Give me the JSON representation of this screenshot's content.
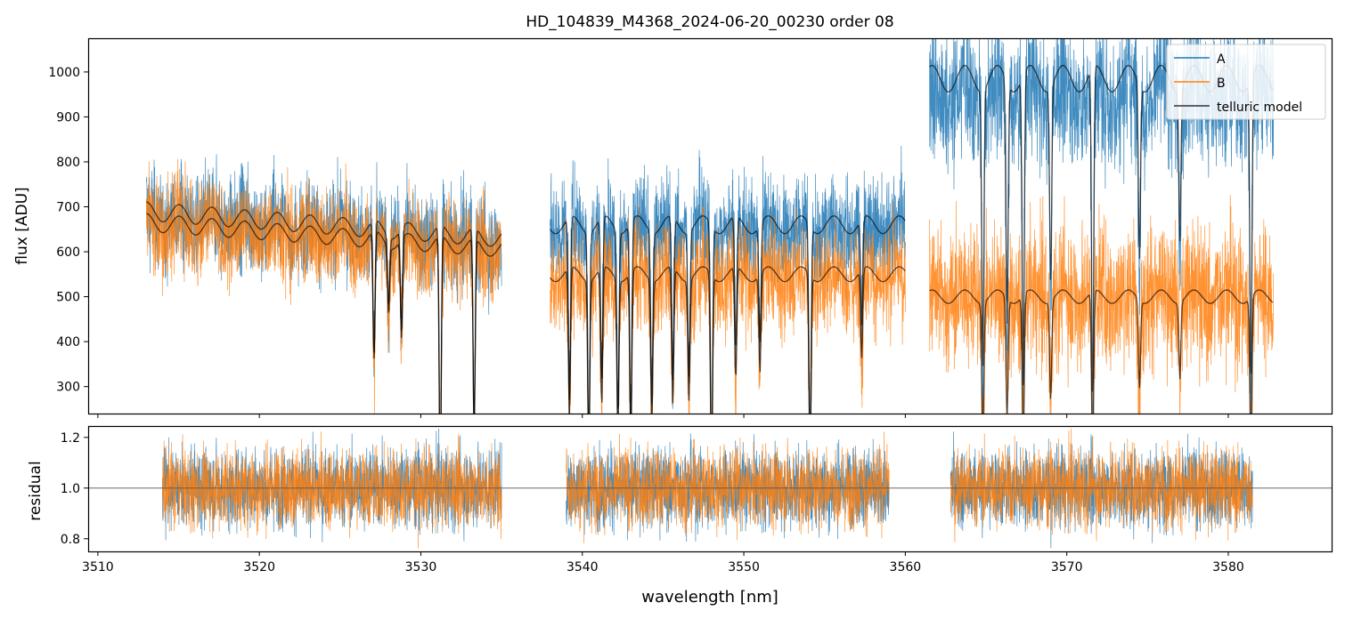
{
  "chart_data": [
    {
      "type": "line",
      "title": "HD_104839_M4368_2024-06-20_00230  order 08",
      "ylabel": "flux [ADU]",
      "xlim": [
        3509.4,
        3586.4
      ],
      "ylim": [
        240,
        1075
      ],
      "yticks": [
        300,
        400,
        500,
        600,
        700,
        800,
        900,
        1000
      ],
      "ytick_labels": [
        "300",
        "400",
        "500",
        "600",
        "700",
        "800",
        "900",
        "1000"
      ],
      "legend": {
        "position": "top-right",
        "entries": [
          {
            "label": "A",
            "color": "#1f77b4"
          },
          {
            "label": "B",
            "color": "#ff7f0e"
          },
          {
            "label": "telluric model",
            "color": "#000000"
          }
        ]
      },
      "segments": [
        {
          "x": [
            3513.0,
            3535.0
          ],
          "A_level": 680,
          "B_level": 660,
          "model_level_A": 690,
          "model_level_B": 665,
          "noise": 55
        },
        {
          "x": [
            3538.0,
            3560.0
          ],
          "A_level": 650,
          "B_level": 540,
          "model_level_A": 660,
          "model_level_B": 550,
          "noise": 60
        },
        {
          "x": [
            3561.5,
            3582.8
          ],
          "A_level": 950,
          "B_level": 500,
          "model_level_A": 985,
          "model_level_B": 500,
          "noise": 80
        }
      ],
      "tellurics": [
        {
          "x": 3527.1,
          "depth": 0.45
        },
        {
          "x": 3528.0,
          "depth": 0.25
        },
        {
          "x": 3528.8,
          "depth": 0.35
        },
        {
          "x": 3531.2,
          "depth": 0.85
        },
        {
          "x": 3533.3,
          "depth": 0.7
        },
        {
          "x": 3539.2,
          "depth": 0.6
        },
        {
          "x": 3540.4,
          "depth": 0.75
        },
        {
          "x": 3541.2,
          "depth": 0.55
        },
        {
          "x": 3542.2,
          "depth": 0.65
        },
        {
          "x": 3543.0,
          "depth": 0.7
        },
        {
          "x": 3544.3,
          "depth": 0.6
        },
        {
          "x": 3545.6,
          "depth": 0.55
        },
        {
          "x": 3546.6,
          "depth": 0.5
        },
        {
          "x": 3548.0,
          "depth": 0.85
        },
        {
          "x": 3549.5,
          "depth": 0.45
        },
        {
          "x": 3551.0,
          "depth": 0.4
        },
        {
          "x": 3554.1,
          "depth": 0.8
        },
        {
          "x": 3557.3,
          "depth": 0.35
        },
        {
          "x": 3564.8,
          "depth": 0.65
        },
        {
          "x": 3566.3,
          "depth": 0.55
        },
        {
          "x": 3567.3,
          "depth": 0.7
        },
        {
          "x": 3569.0,
          "depth": 0.45
        },
        {
          "x": 3571.6,
          "depth": 0.75
        },
        {
          "x": 3574.5,
          "depth": 0.4
        },
        {
          "x": 3577.0,
          "depth": 0.35
        },
        {
          "x": 3581.4,
          "depth": 0.7
        }
      ]
    },
    {
      "type": "line",
      "xlabel": "wavelength [nm]",
      "ylabel": "residual",
      "xlim": [
        3509.4,
        3586.4
      ],
      "ylim": [
        0.75,
        1.245
      ],
      "reference_line": 1.0,
      "yticks": [
        0.8,
        1.0,
        1.2
      ],
      "ytick_labels": [
        "0.8",
        "1.0",
        "1.2"
      ],
      "xticks": [
        3510,
        3520,
        3530,
        3540,
        3550,
        3560,
        3570,
        3580
      ],
      "xtick_labels": [
        "3510",
        "3520",
        "3530",
        "3540",
        "3550",
        "3560",
        "3570",
        "3580"
      ],
      "segments": [
        {
          "x": [
            3514.0,
            3535.0
          ]
        },
        {
          "x": [
            3539.0,
            3559.0
          ]
        },
        {
          "x": [
            3562.8,
            3581.5
          ]
        }
      ],
      "noise": 0.08
    }
  ]
}
